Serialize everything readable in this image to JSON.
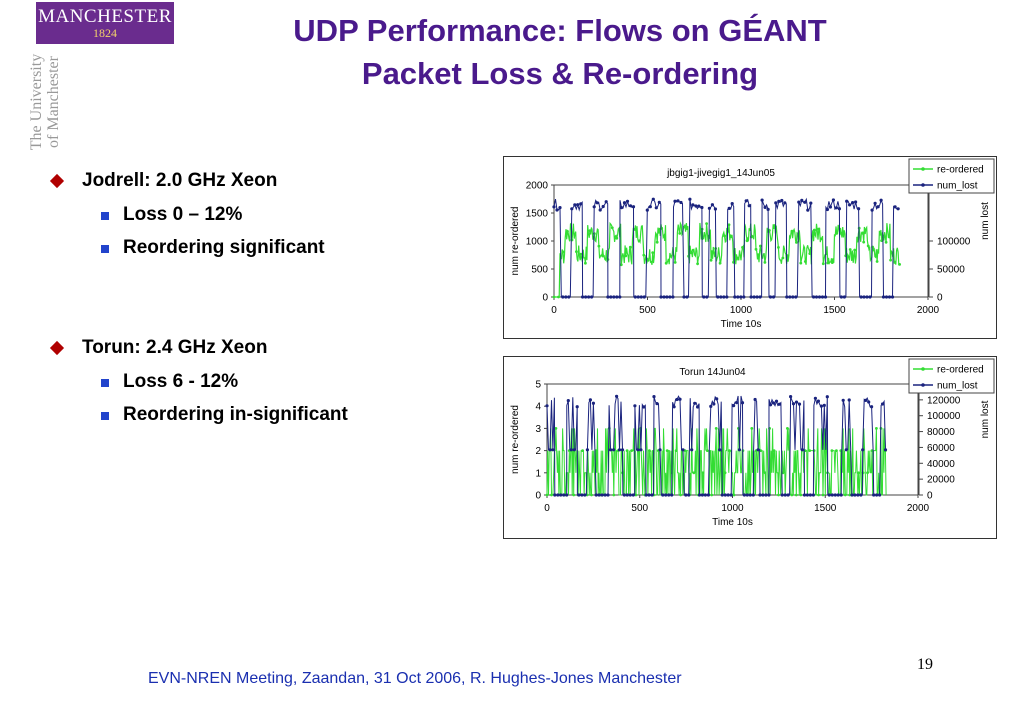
{
  "logo": {
    "main": "MANCHESTER",
    "year": "1824"
  },
  "side_text": {
    "line1": "The University",
    "line2": "of Manchester"
  },
  "title": {
    "line1": "UDP Performance: Flows on GÉANT",
    "line2": "Packet Loss & Re-ordering"
  },
  "bullets": [
    {
      "text": "Jodrell: 2.0 GHz  Xeon",
      "sub": [
        "Loss 0 – 12%",
        "Reordering significant"
      ]
    },
    {
      "text": "Torun: 2.4 GHz Xeon",
      "sub": [
        "Loss 6 - 12%",
        "Reordering in-significant"
      ]
    }
  ],
  "colors": {
    "reordered": "#33dd33",
    "lost": "#1a237e",
    "title": "#4a1a8c",
    "footer": "#1a2fb0"
  },
  "chart_data": [
    {
      "type": "line",
      "title": "jbgig1-jivegig1_14Jun05",
      "xlabel": "Time 10s",
      "ylabel": "num re-ordered",
      "y2label": "num lost",
      "xlim": [
        0,
        2000
      ],
      "ylim": [
        0,
        2000
      ],
      "y2lim": [
        0,
        200000
      ],
      "xticks": [
        0,
        500,
        1000,
        1500,
        2000
      ],
      "yticks": [
        0,
        500,
        1000,
        1500,
        2000
      ],
      "y2ticks": [
        0,
        50000,
        100000
      ],
      "legend": [
        "re-ordered",
        "num_lost"
      ],
      "legend_position": "top-right",
      "series_reordered": {
        "name": "re-ordered",
        "band_low": 700,
        "band_high": 1300,
        "x_end": 1850
      },
      "series_lost": {
        "name": "num_lost",
        "high": 165000,
        "x_end": 1850
      }
    },
    {
      "type": "line",
      "title": "Torun 14Jun04",
      "xlabel": "Time 10s",
      "ylabel": "num re-ordered",
      "y2label": "num lost",
      "xlim": [
        0,
        2000
      ],
      "ylim": [
        0,
        5
      ],
      "y2lim": [
        0,
        140000
      ],
      "xticks": [
        0,
        500,
        1000,
        1500,
        2000
      ],
      "yticks": [
        0,
        1,
        2,
        3,
        4,
        5
      ],
      "y2ticks": [
        0,
        20000,
        40000,
        60000,
        80000,
        100000,
        120000
      ],
      "legend": [
        "re-ordered",
        "num_lost"
      ],
      "legend_position": "top-right",
      "series_reordered": {
        "name": "re-ordered",
        "band_low": 0,
        "band_high": 2,
        "x_end": 1830
      },
      "series_lost": {
        "name": "num_lost",
        "high": 118000,
        "mid": 57000,
        "x_end": 1830
      }
    }
  ],
  "page_number": "19",
  "footer": "EVN-NREN Meeting, Zaandan, 31 Oct 2006,  R. Hughes-Jones  Manchester"
}
